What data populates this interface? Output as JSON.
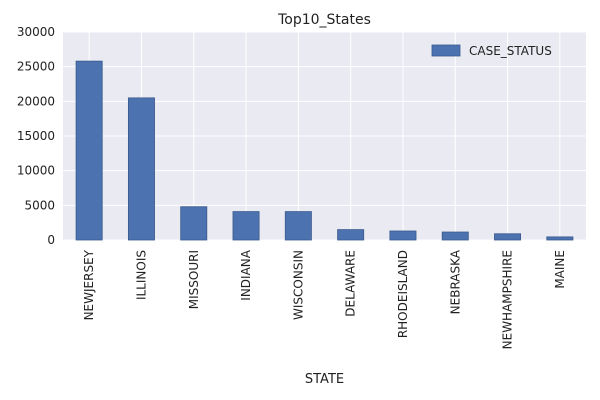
{
  "chart_data": {
    "type": "bar",
    "title": "Top10_States",
    "xlabel": "STATE",
    "ylabel": "",
    "categories": [
      "NEWJERSEY",
      "ILLINOIS",
      "MISSOURI",
      "INDIANA",
      "WISCONSIN",
      "DELAWARE",
      "RHODEISLAND",
      "NEBRASKA",
      "NEWHAMPSHIRE",
      "MAINE"
    ],
    "series": [
      {
        "name": "CASE_STATUS",
        "values": [
          25800,
          20500,
          4800,
          4100,
          4100,
          1500,
          1300,
          1150,
          900,
          450
        ]
      }
    ],
    "ylim": [
      0,
      30000
    ],
    "yticks": [
      0,
      5000,
      10000,
      15000,
      20000,
      25000,
      30000
    ],
    "grid": true,
    "legend_position": "top-right",
    "colors": {
      "bar": "#4c72b0",
      "plot_background": "#eaeaf2",
      "grid": "#ffffff"
    }
  }
}
